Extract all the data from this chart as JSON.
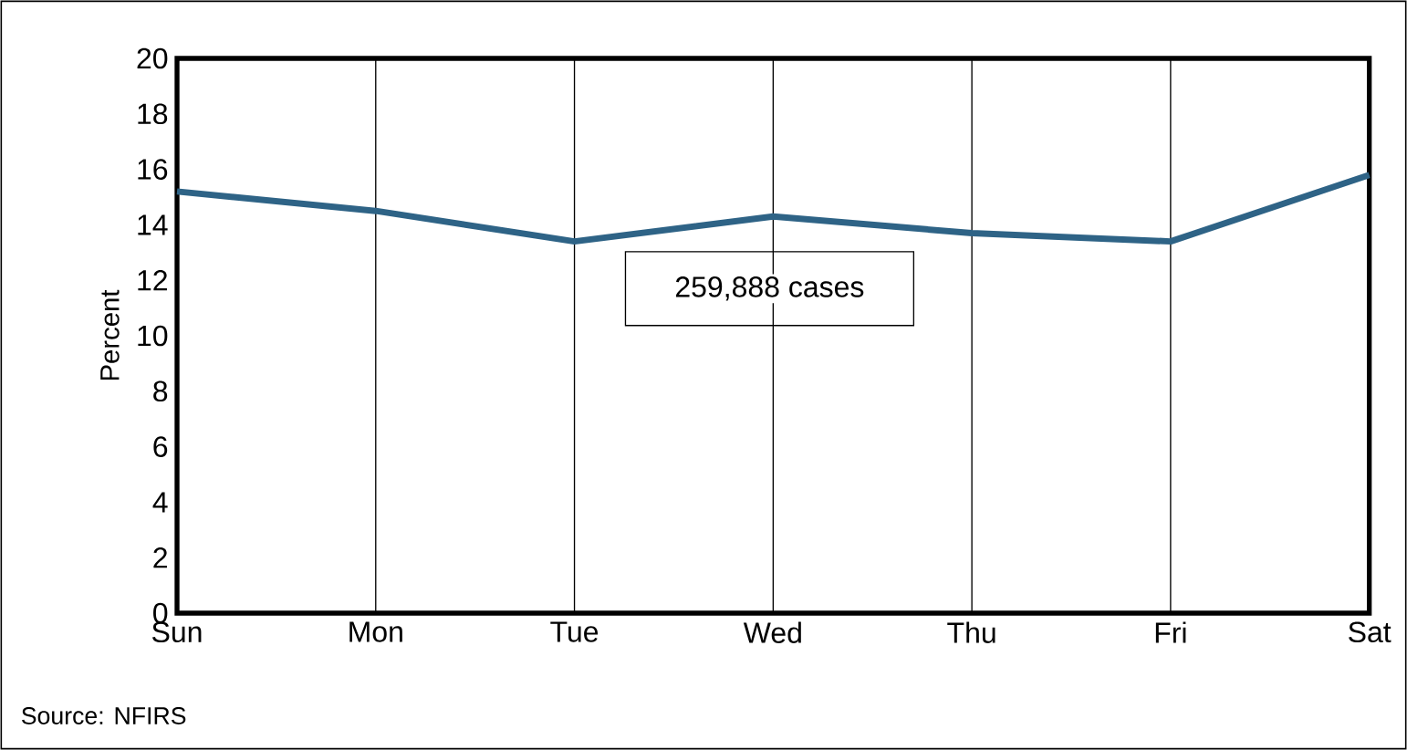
{
  "chart_data": {
    "type": "line",
    "ylabel": "Percent",
    "categories": [
      "Sun",
      "Mon",
      "Tue",
      "Wed",
      "Thu",
      "Fri",
      "Sat"
    ],
    "series": [
      {
        "color": "#2e6386",
        "values": [
          15.2,
          14.5,
          13.4,
          14.3,
          13.7,
          13.4,
          15.8
        ]
      }
    ],
    "ylim": [
      0,
      20
    ],
    "yticks": [
      0,
      2,
      4,
      6,
      8,
      10,
      12,
      14,
      16,
      18,
      20
    ],
    "grid": "x",
    "marker": "none",
    "line_style": "solid",
    "annotations": [
      "259,888 cases",
      "Source:  NFIRS"
    ]
  }
}
